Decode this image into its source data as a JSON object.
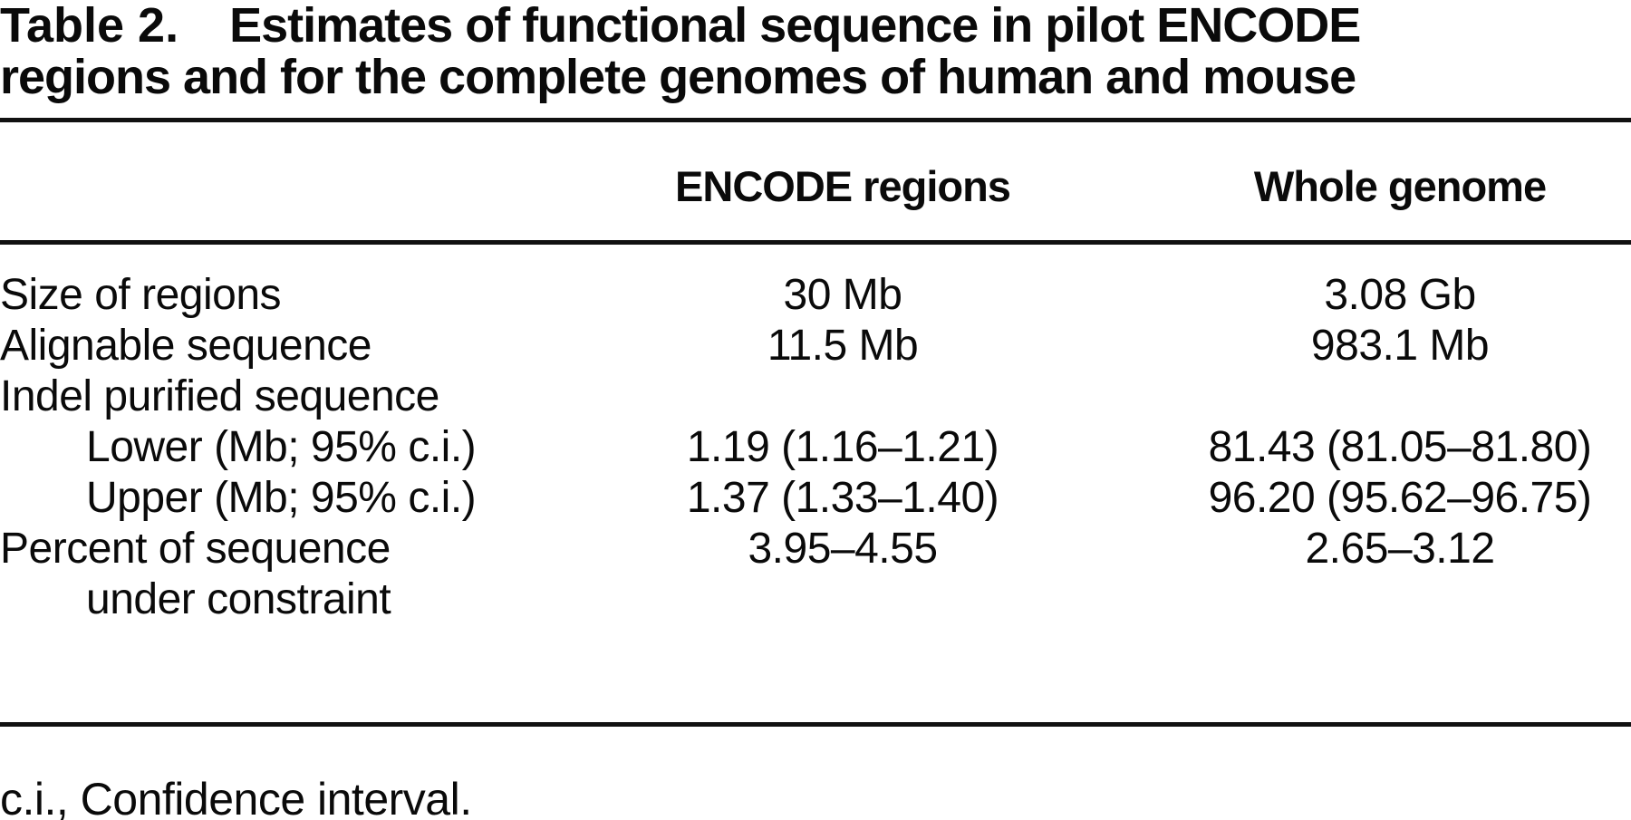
{
  "colors": {
    "text": "#0a0a0a",
    "background": "#ffffff",
    "rule": "#111111"
  },
  "title": {
    "prefix": "Table 2.",
    "line1_rest": "Estimates of functional sequence in pilot ENCODE",
    "line2": "regions and for the complete genomes of human and mouse"
  },
  "table": {
    "column_headers": {
      "encode": "ENCODE regions",
      "genome": "Whole genome"
    },
    "rows": [
      {
        "label": "Size of regions",
        "encode": "30 Mb",
        "genome": "3.08 Gb"
      },
      {
        "label": "Alignable sequence",
        "encode": "11.5 Mb",
        "genome": "983.1 Mb"
      },
      {
        "label": "Indel purified sequence",
        "encode": "",
        "genome": ""
      },
      {
        "label": "Lower (Mb; 95% c.i.)",
        "encode": "1.19 (1.16–1.21)",
        "genome": "81.43 (81.05–81.80)"
      },
      {
        "label": "Upper (Mb; 95% c.i.)",
        "encode": "1.37 (1.33–1.40)",
        "genome": "96.20 (95.62–96.75)"
      },
      {
        "label": "Percent of sequence",
        "encode": "3.95–4.55",
        "genome": "2.65–3.12"
      },
      {
        "label": "under constraint",
        "encode": "",
        "genome": ""
      }
    ]
  },
  "footnote": "c.i., Confidence interval."
}
